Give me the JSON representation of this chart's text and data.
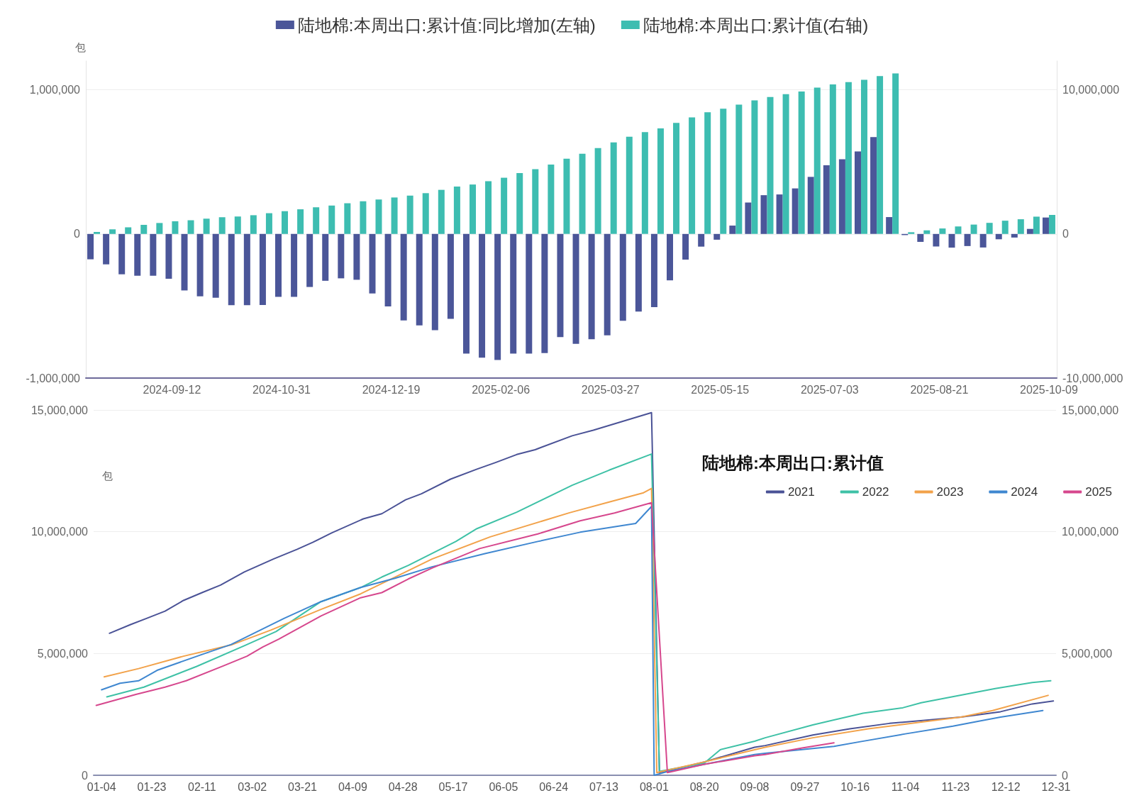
{
  "chart_data": [
    {
      "type": "bar",
      "ylabel": "包",
      "legend": "top",
      "grid": "y",
      "categories": [
        null,
        null,
        null,
        null,
        null,
        "2024-09-12",
        null,
        null,
        null,
        null,
        null,
        null,
        "2024-10-31",
        null,
        null,
        null,
        null,
        null,
        null,
        "2024-12-19",
        null,
        null,
        null,
        null,
        null,
        null,
        "2025-02-06",
        null,
        null,
        null,
        null,
        null,
        null,
        "2025-03-27",
        null,
        null,
        null,
        null,
        null,
        null,
        "2025-05-15",
        null,
        null,
        null,
        null,
        null,
        null,
        "2025-07-03",
        null,
        null,
        null,
        null,
        null,
        null,
        "2025-08-21",
        null,
        null,
        null,
        null,
        null,
        null,
        "2025-10-09"
      ],
      "series": [
        {
          "name": "陆地棉:本周出口:累计值:同比增加(左轴)",
          "color": "#4b5699",
          "axis": "y",
          "values": [
            -176000,
            -211000,
            -280000,
            -290000,
            -290000,
            -311000,
            -392000,
            -433000,
            -443000,
            -494000,
            -494000,
            -493000,
            -436000,
            -436000,
            -368000,
            -325000,
            -308000,
            -318000,
            -413000,
            -503000,
            -600000,
            -635000,
            -668000,
            -589000,
            -830000,
            -858000,
            -874000,
            -830000,
            -830000,
            -827000,
            -716000,
            -762000,
            -730000,
            -704000,
            -602000,
            -538000,
            -508000,
            -322000,
            -178000,
            -88000,
            -40000,
            58000,
            218000,
            269000,
            274000,
            316000,
            396000,
            477000,
            518000,
            572000,
            672000,
            117000,
            -8000,
            -55000,
            -87000,
            -95000,
            -84000,
            -94000,
            -37000,
            -25000,
            35000,
            114000
          ]
        },
        {
          "name": "陆地棉:本周出口:累计值(右轴)",
          "color": "#3dbdb1",
          "axis": "y2",
          "values": [
            140000,
            320000,
            460000,
            630000,
            760000,
            880000,
            950000,
            1060000,
            1160000,
            1210000,
            1300000,
            1440000,
            1580000,
            1710000,
            1850000,
            1970000,
            2130000,
            2270000,
            2390000,
            2530000,
            2660000,
            2830000,
            3060000,
            3290000,
            3430000,
            3660000,
            3900000,
            4220000,
            4500000,
            4820000,
            5220000,
            5560000,
            5960000,
            6350000,
            6740000,
            7070000,
            7330000,
            7700000,
            8090000,
            8440000,
            8690000,
            8970000,
            9270000,
            9500000,
            9700000,
            9880000,
            10150000,
            10370000,
            10540000,
            10700000,
            10950000,
            11140000,
            120000,
            250000,
            380000,
            520000,
            650000,
            770000,
            920000,
            1020000,
            1200000,
            1320000
          ]
        }
      ],
      "ylim": [
        -1000000,
        1200000
      ],
      "yticks": [
        {
          "value": -1000000,
          "label": "-1,000,000"
        },
        0,
        {
          "value": 1000000,
          "label": "1,000,000"
        }
      ],
      "y2lim": [
        -10000000,
        12000000
      ],
      "y2ticks": [
        {
          "value": -10000000,
          "label": "-10,000,000"
        },
        0,
        {
          "value": 10000000,
          "label": "10,000,000"
        }
      ]
    },
    {
      "type": "line",
      "title": "陆地棉:本周出口:累计值",
      "ylabel": "包",
      "legend": "top right",
      "grid": "y",
      "marker": "none",
      "xlim": [
        "--01-01",
        "--12-31"
      ],
      "xticks": [
        {
          "value": "--01-04",
          "label": "01-04"
        },
        {
          "value": "--01-23",
          "label": "01-23"
        },
        {
          "value": "--02-11",
          "label": "02-11"
        },
        {
          "value": "--03-02",
          "label": "03-02"
        },
        {
          "value": "--03-21",
          "label": "03-21"
        },
        {
          "value": "--04-09",
          "label": "04-09"
        },
        {
          "value": "--04-28",
          "label": "04-28"
        },
        {
          "value": "--05-17",
          "label": "05-17"
        },
        {
          "value": "--06-05",
          "label": "06-05"
        },
        {
          "value": "--06-24",
          "label": "06-24"
        },
        {
          "value": "--07-13",
          "label": "07-13"
        },
        {
          "value": "--08-01",
          "label": "08-01"
        },
        {
          "value": "--08-20",
          "label": "08-20"
        },
        {
          "value": "--09-08",
          "label": "09-08"
        },
        {
          "value": "--09-27",
          "label": "09-27"
        },
        {
          "value": "--10-16",
          "label": "10-16"
        },
        {
          "value": "--11-04",
          "label": "11-04"
        },
        {
          "value": "--11-23",
          "label": "11-23"
        },
        {
          "value": "--12-12",
          "label": "12-12"
        },
        {
          "value": "--12-31",
          "label": "12-31"
        }
      ],
      "ylim": [
        0,
        15000000
      ],
      "yticks": [
        0,
        {
          "value": 5000000,
          "label": "5,000,000"
        },
        {
          "value": 10000000,
          "label": "10,000,000"
        },
        {
          "value": 15000000,
          "label": "15,000,000"
        }
      ],
      "y2lim": [
        0,
        15000000
      ],
      "y2ticks": [
        0,
        {
          "value": 5000000,
          "label": "5,000,000"
        },
        {
          "value": 10000000,
          "label": "10,000,000"
        },
        {
          "value": 15000000,
          "label": "15,000,000"
        }
      ],
      "series": [
        {
          "name": "2021",
          "color": "#4a5296",
          "x": [
            "--01-07",
            "--01-15",
            "--01-21",
            "--01-28",
            "--02-04",
            "--02-11",
            "--02-18",
            "--02-27",
            "--03-10",
            "--03-19",
            "--03-25",
            "--04-01",
            "--04-13",
            "--04-20",
            "--04-29",
            "--05-05",
            "--05-16",
            "--05-26",
            "--06-02",
            "--06-10",
            "--06-17",
            "--07-01",
            "--07-09",
            "--07-31",
            "--08-03",
            "--08-20",
            "--09-08",
            "--09-12",
            "--09-30",
            "--10-14",
            "--10-29",
            "--11-25",
            "--12-10",
            "--12-22",
            "--12-30"
          ],
          "values": [
            5830000,
            6190000,
            6440000,
            6740000,
            7180000,
            7500000,
            7810000,
            8350000,
            8880000,
            9280000,
            9570000,
            9950000,
            10530000,
            10740000,
            11310000,
            11560000,
            12160000,
            12570000,
            12840000,
            13170000,
            13370000,
            13940000,
            14170000,
            14890000,
            100000,
            550000,
            1150000,
            1220000,
            1650000,
            1910000,
            2130000,
            2390000,
            2610000,
            2930000,
            3050000
          ]
        },
        {
          "name": "2022",
          "color": "#3ec1a6",
          "x": [
            "--01-06",
            "--01-20",
            "--02-09",
            "--02-27",
            "--03-11",
            "--03-28",
            "--04-12",
            "--04-20",
            "--04-30",
            "--05-18",
            "--05-26",
            "--06-10",
            "--07-01",
            "--07-15",
            "--07-31",
            "--08-03",
            "--08-20",
            "--08-26",
            "--09-08",
            "--09-12",
            "--09-30",
            "--10-19",
            "--11-03",
            "--11-10",
            "--12-08",
            "--12-22",
            "--12-29"
          ],
          "values": [
            3220000,
            3620000,
            4470000,
            5320000,
            5900000,
            7130000,
            7710000,
            8140000,
            8620000,
            9600000,
            10130000,
            10800000,
            11910000,
            12530000,
            13190000,
            160000,
            500000,
            1050000,
            1400000,
            1540000,
            2070000,
            2550000,
            2770000,
            2980000,
            3560000,
            3810000,
            3880000
          ]
        },
        {
          "name": "2023",
          "color": "#f2a24a",
          "x": [
            "--01-05",
            "--01-18",
            "--02-04",
            "--02-22",
            "--03-09",
            "--03-28",
            "--04-12",
            "--04-25",
            "--05-09",
            "--05-31",
            "--06-30",
            "--07-15",
            "--07-28",
            "--07-31",
            "--08-02",
            "--08-20",
            "--09-08",
            "--09-12",
            "--09-30",
            "--10-21",
            "--11-25",
            "--12-07",
            "--12-28"
          ],
          "values": [
            4040000,
            4380000,
            4890000,
            5350000,
            5960000,
            6810000,
            7450000,
            8140000,
            8880000,
            9790000,
            10780000,
            11220000,
            11600000,
            11780000,
            110000,
            550000,
            1050000,
            1150000,
            1540000,
            1910000,
            2390000,
            2660000,
            3280000
          ]
        },
        {
          "name": "2024",
          "color": "#3f87d0",
          "x": [
            "--01-04",
            "--01-11",
            "--01-18",
            "--01-25",
            "--02-12",
            "--02-22",
            "--02-28",
            "--03-14",
            "--03-28",
            "--04-12",
            "--04-25",
            "--05-09",
            "--05-29",
            "--06-18",
            "--07-04",
            "--07-25",
            "--07-31",
            "--08-01",
            "--08-06",
            "--08-20",
            "--09-08",
            "--09-12",
            "--10-08",
            "--10-18",
            "--11-04",
            "--11-22",
            "--12-10",
            "--12-26"
          ],
          "values": [
            3510000,
            3780000,
            3880000,
            4310000,
            5000000,
            5370000,
            5690000,
            6440000,
            7130000,
            7710000,
            8090000,
            8560000,
            9100000,
            9600000,
            9980000,
            10340000,
            11040000,
            0,
            150000,
            450000,
            850000,
            900000,
            1190000,
            1380000,
            1700000,
            2020000,
            2390000,
            2660000
          ]
        },
        {
          "name": "2025",
          "color": "#d6478d",
          "x": [
            "--01-02",
            "--01-17",
            "--01-28",
            "--02-05",
            "--02-19",
            "--02-28",
            "--03-06",
            "--03-12",
            "--03-28",
            "--04-12",
            "--04-20",
            "--04-30",
            "--05-09",
            "--05-27",
            "--06-18",
            "--07-04",
            "--07-17",
            "--07-31",
            "--08-06",
            "--08-20",
            "--09-08",
            "--09-12",
            "--09-26",
            "--10-08"
          ],
          "values": [
            2870000,
            3320000,
            3620000,
            3880000,
            4490000,
            4890000,
            5270000,
            5590000,
            6540000,
            7290000,
            7500000,
            8060000,
            8510000,
            9310000,
            9910000,
            10450000,
            10770000,
            11190000,
            110000,
            450000,
            800000,
            850000,
            1120000,
            1330000
          ]
        }
      ]
    }
  ]
}
